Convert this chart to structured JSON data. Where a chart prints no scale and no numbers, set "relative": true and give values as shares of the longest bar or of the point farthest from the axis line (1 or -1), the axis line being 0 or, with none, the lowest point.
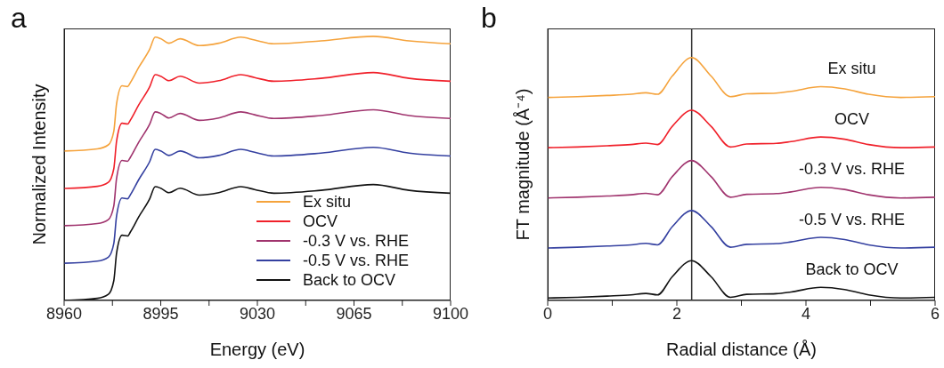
{
  "chart_data": [
    {
      "type": "line",
      "title": "a",
      "xlabel": "Energy (eV)",
      "ylabel": "Normalized Intensity",
      "relative": true,
      "legend": "bottom right",
      "marker": "none",
      "line_style": "solid",
      "xlim": [
        8960,
        9100
      ],
      "xticks": [
        8960,
        {
          "value": 8977.5,
          "label": null
        },
        8995,
        {
          "value": 9012.5,
          "label": null
        },
        9030,
        {
          "value": 9047.5,
          "label": null
        },
        9065,
        {
          "value": 9082.5,
          "label": null
        },
        9100
      ],
      "x": [
        8960,
        8972,
        8976,
        8978,
        8979,
        8981,
        8983,
        8984,
        8987,
        8991,
        8993,
        8995,
        8998,
        9002,
        9009,
        9016,
        9024,
        9029,
        9036,
        9053,
        9072,
        9085,
        9100
      ],
      "series": [
        {
          "name": "Ex situ",
          "color": "#f5a33c",
          "values": [
            0.566,
            0.574,
            0.589,
            0.641,
            0.745,
            0.813,
            0.81,
            0.825,
            0.882,
            0.951,
            0.997,
            0.991,
            0.974,
            0.991,
            0.965,
            0.974,
            0.997,
            0.986,
            0.972,
            0.983,
            1,
            0.983,
            0.972
          ]
        },
        {
          "name": "OCV",
          "color": "#f0202a",
          "values": [
            0.424,
            0.432,
            0.447,
            0.499,
            0.603,
            0.671,
            0.668,
            0.683,
            0.74,
            0.809,
            0.855,
            0.849,
            0.832,
            0.849,
            0.823,
            0.832,
            0.855,
            0.844,
            0.83,
            0.841,
            0.863,
            0.841,
            0.83
          ]
        },
        {
          "name": "-0.3 V  vs. RHE",
          "color": "#a0346e",
          "values": [
            0.283,
            0.291,
            0.306,
            0.358,
            0.462,
            0.53,
            0.527,
            0.542,
            0.599,
            0.668,
            0.714,
            0.708,
            0.691,
            0.708,
            0.682,
            0.691,
            0.714,
            0.703,
            0.689,
            0.7,
            0.722,
            0.7,
            0.689
          ]
        },
        {
          "name": "-0.5 V  vs. RHE",
          "color": "#3440a0",
          "values": [
            0.141,
            0.149,
            0.164,
            0.216,
            0.32,
            0.388,
            0.385,
            0.4,
            0.457,
            0.526,
            0.572,
            0.566,
            0.549,
            0.566,
            0.54,
            0.549,
            0.572,
            0.561,
            0.547,
            0.558,
            0.58,
            0.558,
            0.547
          ]
        },
        {
          "name": "Back to OCV",
          "color": "#111111",
          "values": [
            0,
            0.008,
            0.023,
            0.075,
            0.179,
            0.247,
            0.244,
            0.259,
            0.316,
            0.385,
            0.431,
            0.425,
            0.408,
            0.425,
            0.399,
            0.408,
            0.431,
            0.42,
            0.406,
            0.417,
            0.439,
            0.417,
            0.406
          ]
        }
      ]
    },
    {
      "type": "line",
      "title": "b",
      "xlabel": "Radial distance (Å)",
      "ylabel": "FT magnitude (Å⁻⁴)",
      "relative": true,
      "legend": false,
      "marker": "none",
      "line_style": "solid",
      "xlim": [
        0,
        6
      ],
      "xticks": [
        0,
        {
          "value": 1,
          "label": null
        },
        2,
        {
          "value": 3,
          "label": null
        },
        4,
        {
          "value": 5,
          "label": null
        },
        6
      ],
      "ref_lines": [
        {
          "axis": "x",
          "value": 2.23,
          "color": "#333333"
        }
      ],
      "x": [
        0,
        0.46,
        0.92,
        1.29,
        1.52,
        1.7,
        1.93,
        2.23,
        2.53,
        2.83,
        3.08,
        3.54,
        3.77,
        4.23,
        4.6,
        4.97,
        5.47,
        6
      ],
      "series": [
        {
          "name": "Ex situ",
          "color": "#f5a33c",
          "values": [
            0.836,
            0.839,
            0.844,
            0.849,
            0.855,
            0.849,
            0.924,
            1,
            0.924,
            0.839,
            0.851,
            0.854,
            0.861,
            0.88,
            0.871,
            0.849,
            0.836,
            0.839
          ]
        },
        {
          "name": "OCV",
          "color": "#f0202a",
          "values": [
            0.629,
            0.632,
            0.637,
            0.642,
            0.648,
            0.642,
            0.717,
            0.783,
            0.717,
            0.632,
            0.644,
            0.647,
            0.654,
            0.673,
            0.664,
            0.642,
            0.629,
            0.632
          ]
        },
        {
          "name": "-0.3 V  vs. RHE",
          "color": "#a0346e",
          "values": [
            0.422,
            0.425,
            0.43,
            0.435,
            0.441,
            0.435,
            0.51,
            0.576,
            0.51,
            0.425,
            0.437,
            0.44,
            0.447,
            0.466,
            0.457,
            0.435,
            0.422,
            0.425
          ]
        },
        {
          "name": "-0.5 V  vs. RHE",
          "color": "#3440a0",
          "values": [
            0.216,
            0.219,
            0.224,
            0.229,
            0.235,
            0.229,
            0.304,
            0.37,
            0.304,
            0.219,
            0.231,
            0.234,
            0.241,
            0.26,
            0.251,
            0.229,
            0.216,
            0.219
          ]
        },
        {
          "name": "Back to OCV",
          "color": "#111111",
          "values": [
            0.01,
            0.013,
            0.018,
            0.023,
            0.029,
            0.023,
            0.098,
            0.164,
            0.098,
            0.013,
            0.025,
            0.028,
            0.035,
            0.054,
            0.045,
            0.023,
            0.01,
            0.013
          ]
        }
      ]
    }
  ]
}
